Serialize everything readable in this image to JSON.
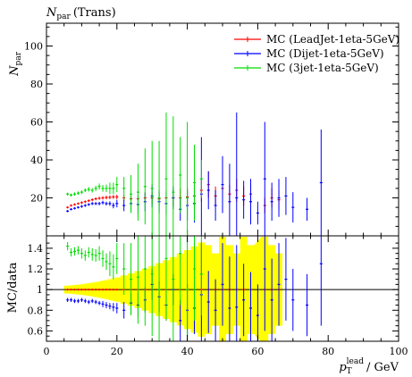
{
  "chart_data": [
    {
      "type": "scatter",
      "title": "N_par (Trans)",
      "ylabel": "N_par",
      "xlim": [
        0,
        100
      ],
      "ylim": [
        0,
        112
      ],
      "yticks": [
        20,
        40,
        60,
        80,
        100
      ],
      "legend": "top-right",
      "series": [
        {
          "name": "MC (LeadJet-1eta-5GeV)",
          "color": "#ff0000",
          "x": [
            6,
            7,
            8,
            9,
            10,
            11,
            12,
            13,
            14,
            15,
            16,
            17,
            18,
            19,
            20,
            22,
            24,
            26,
            28,
            30,
            32,
            34,
            36,
            38,
            40,
            42,
            44,
            46,
            48,
            50,
            52,
            54,
            56,
            58,
            62,
            64,
            66
          ],
          "y": [
            15,
            16,
            16.5,
            17,
            17.5,
            18,
            18.5,
            19,
            19.5,
            19.8,
            20,
            20.2,
            20.3,
            20.5,
            20.5,
            20,
            19.5,
            19.5,
            20,
            20,
            19.5,
            20,
            20,
            20,
            20.5,
            21,
            24,
            27,
            21,
            25,
            22,
            24,
            21,
            22,
            16,
            20,
            19
          ],
          "err": [
            0.6,
            0.6,
            0.6,
            0.6,
            0.7,
            0.7,
            0.7,
            0.8,
            0.8,
            0.8,
            0.9,
            1,
            1,
            1,
            1.2,
            1.5,
            1.8,
            2,
            2.5,
            3,
            3.5,
            4,
            4.5,
            5,
            5,
            5,
            6,
            7,
            5,
            6,
            5,
            6,
            5,
            5,
            4,
            5,
            5
          ]
        },
        {
          "name": "MC (Dijet-1eta-5GeV)",
          "color": "#0000ff",
          "x": [
            6,
            7,
            8,
            9,
            10,
            11,
            12,
            13,
            14,
            15,
            16,
            17,
            18,
            19,
            20,
            22,
            24,
            26,
            28,
            30,
            32,
            34,
            36,
            38,
            40,
            42,
            44,
            46,
            48,
            50,
            52,
            54,
            56,
            58,
            60,
            62,
            64,
            66,
            68,
            70,
            74,
            78
          ],
          "y": [
            13,
            14,
            14.5,
            15,
            15.5,
            16,
            16.5,
            17,
            17,
            17,
            17.5,
            17,
            17,
            16,
            17,
            16,
            17,
            16.5,
            18,
            21,
            18,
            17,
            20,
            14,
            16,
            17,
            22,
            24,
            16,
            27,
            18,
            20,
            19,
            18,
            12,
            30,
            18,
            20,
            21,
            15,
            14,
            28
          ],
          "err": [
            0.6,
            0.6,
            0.6,
            0.6,
            0.7,
            0.7,
            0.7,
            0.8,
            0.8,
            0.9,
            1,
            1,
            1.2,
            1.5,
            2,
            3,
            4,
            5,
            5,
            6,
            6,
            6,
            6,
            6,
            8,
            10,
            30,
            10,
            8,
            15,
            20,
            45,
            10,
            12,
            6,
            30,
            10,
            10,
            10,
            8,
            6,
            28
          ]
        },
        {
          "name": "MC (3jet-1eta-5GeV)",
          "color": "#00dd00",
          "x": [
            6,
            7,
            8,
            9,
            10,
            11,
            12,
            13,
            14,
            15,
            16,
            17,
            18,
            19,
            20,
            22,
            24,
            26,
            28,
            30,
            32,
            34,
            36,
            38,
            40,
            42,
            44
          ],
          "y": [
            22,
            21.5,
            22,
            22.5,
            23,
            24,
            24.5,
            24,
            25,
            26,
            25,
            25,
            25,
            25,
            27,
            25,
            22,
            23,
            26,
            25,
            20,
            30,
            23,
            32,
            20,
            28,
            30
          ],
          "err": [
            0.8,
            0.8,
            0.9,
            0.9,
            1,
            1,
            1.2,
            1.2,
            1.4,
            1.6,
            1.8,
            2,
            3,
            3,
            4,
            6,
            10,
            15,
            20,
            25,
            30,
            35,
            40,
            20,
            40,
            20,
            10
          ]
        }
      ]
    },
    {
      "type": "scatter",
      "ylabel": "MC/data",
      "xlabel": "p_T^lead / GeV",
      "xlim": [
        0,
        100
      ],
      "ylim": [
        0.5,
        1.52
      ],
      "xticks": [
        0,
        20,
        40,
        60,
        80,
        100
      ],
      "yticks": [
        0.6,
        0.8,
        1,
        1.2,
        1.4
      ],
      "reference_line": 1,
      "uncertainty_band_color": "#ffff00",
      "series": [
        {
          "name": "MC (LeadJet-1eta-5GeV)",
          "color": "#ff0000",
          "x": [
            6,
            7,
            8,
            9,
            10,
            11,
            12,
            13,
            14,
            15,
            16,
            17,
            18,
            19,
            20,
            22,
            24,
            26,
            28,
            30,
            32,
            34,
            36,
            38,
            40,
            42,
            44,
            46,
            48,
            50,
            52,
            54,
            56,
            58,
            62,
            64,
            66
          ],
          "y": [
            1,
            1,
            1,
            1,
            1,
            1,
            1,
            1,
            1,
            1,
            1,
            1,
            1,
            1,
            1,
            1,
            1,
            1,
            1,
            1,
            1,
            1,
            1,
            1,
            1,
            1,
            1,
            1,
            1,
            1,
            1,
            1,
            1,
            1,
            1,
            1,
            1
          ],
          "err": [
            0.01,
            0.01,
            0.01,
            0.01,
            0.01,
            0.01,
            0.01,
            0.01,
            0.01,
            0.01,
            0.01,
            0.01,
            0.01,
            0.01,
            0.01,
            0.01,
            0.01,
            0.01,
            0.01,
            0.01,
            0.01,
            0.01,
            0.01,
            0.01,
            0.01,
            0.01,
            0.01,
            0.01,
            0.01,
            0.01,
            0.01,
            0.01,
            0.01,
            0.01,
            0.01,
            0.01,
            0.01
          ]
        },
        {
          "name": "MC (Dijet-1eta-5GeV)",
          "color": "#0000ff",
          "x": [
            6,
            7,
            8,
            9,
            10,
            11,
            12,
            13,
            14,
            15,
            16,
            17,
            18,
            19,
            20,
            22,
            24,
            26,
            28,
            30,
            32,
            34,
            36,
            38,
            40,
            42,
            44,
            46,
            48,
            50,
            52,
            54,
            56,
            58,
            60,
            62,
            64,
            66,
            68,
            70,
            74,
            78
          ],
          "y": [
            0.9,
            0.9,
            0.89,
            0.89,
            0.9,
            0.89,
            0.88,
            0.89,
            0.88,
            0.87,
            0.86,
            0.85,
            0.84,
            0.83,
            0.82,
            0.8,
            0.87,
            0.85,
            0.9,
            1.05,
            0.93,
            0.85,
            1.0,
            0.7,
            0.8,
            0.82,
            0.95,
            0.88,
            0.8,
            1.05,
            0.82,
            0.83,
            0.9,
            0.82,
            0.75,
            1.2,
            0.9,
            1.05,
            1.1,
            0.9,
            0.85,
            1.25
          ],
          "err": [
            0.02,
            0.02,
            0.02,
            0.02,
            0.02,
            0.02,
            0.02,
            0.02,
            0.02,
            0.02,
            0.03,
            0.03,
            0.03,
            0.04,
            0.05,
            0.08,
            0.1,
            0.12,
            0.12,
            0.15,
            0.15,
            0.15,
            0.15,
            0.2,
            0.25,
            0.25,
            0.5,
            0.3,
            0.3,
            0.4,
            0.5,
            0.6,
            0.35,
            0.35,
            0.3,
            0.6,
            0.4,
            0.4,
            0.4,
            0.3,
            0.3,
            0.6
          ]
        },
        {
          "name": "MC (3jet-1eta-5GeV)",
          "color": "#00dd00",
          "x": [
            6,
            7,
            8,
            9,
            10,
            11,
            12,
            13,
            14,
            15,
            16,
            17,
            18,
            19,
            20,
            22,
            24,
            26,
            28,
            30,
            32,
            34,
            36,
            38,
            40,
            42,
            44
          ],
          "y": [
            1.42,
            1.36,
            1.37,
            1.38,
            1.35,
            1.33,
            1.36,
            1.34,
            1.33,
            1.35,
            1.3,
            1.27,
            1.25,
            1.22,
            1.3,
            1.2,
            1.1,
            1.12,
            1.2,
            1.15,
            1.0,
            1.3,
            1.1,
            1.35,
            1.0,
            1.2,
            1.15
          ],
          "err": [
            0.04,
            0.04,
            0.04,
            0.04,
            0.05,
            0.05,
            0.05,
            0.06,
            0.06,
            0.07,
            0.08,
            0.08,
            0.12,
            0.12,
            0.15,
            0.25,
            0.35,
            0.45,
            0.55,
            0.6,
            0.6,
            0.6,
            0.6,
            0.5,
            0.6,
            0.5,
            0.4
          ]
        }
      ]
    }
  ]
}
